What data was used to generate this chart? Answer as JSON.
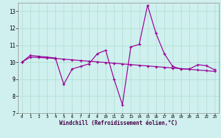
{
  "x": [
    0,
    1,
    2,
    3,
    4,
    5,
    6,
    7,
    8,
    9,
    10,
    11,
    12,
    13,
    14,
    15,
    16,
    17,
    18,
    19,
    20,
    21,
    22,
    23
  ],
  "y_windchill": [
    10.0,
    10.4,
    10.35,
    10.3,
    10.25,
    8.7,
    9.6,
    9.75,
    9.9,
    10.5,
    10.7,
    9.0,
    7.5,
    10.9,
    11.05,
    13.35,
    11.7,
    10.5,
    9.75,
    9.6,
    9.6,
    9.85,
    9.8,
    9.55
  ],
  "y_trend": [
    10.0,
    10.3,
    10.28,
    10.25,
    10.22,
    10.18,
    10.14,
    10.1,
    10.06,
    10.02,
    9.98,
    9.94,
    9.9,
    9.86,
    9.82,
    9.78,
    9.74,
    9.7,
    9.66,
    9.62,
    9.58,
    9.54,
    9.5,
    9.46
  ],
  "color": "#990099",
  "background_color": "#cff0ee",
  "grid_color": "#aaddcc",
  "xlabel": "Windchill (Refroidissement éolien,°C)",
  "xlim": [
    -0.5,
    23.5
  ],
  "ylim": [
    7,
    13.5
  ],
  "yticks": [
    7,
    8,
    9,
    10,
    11,
    12,
    13
  ],
  "xticks": [
    0,
    1,
    2,
    3,
    4,
    5,
    6,
    7,
    8,
    9,
    10,
    11,
    12,
    13,
    14,
    15,
    16,
    17,
    18,
    19,
    20,
    21,
    22,
    23
  ]
}
